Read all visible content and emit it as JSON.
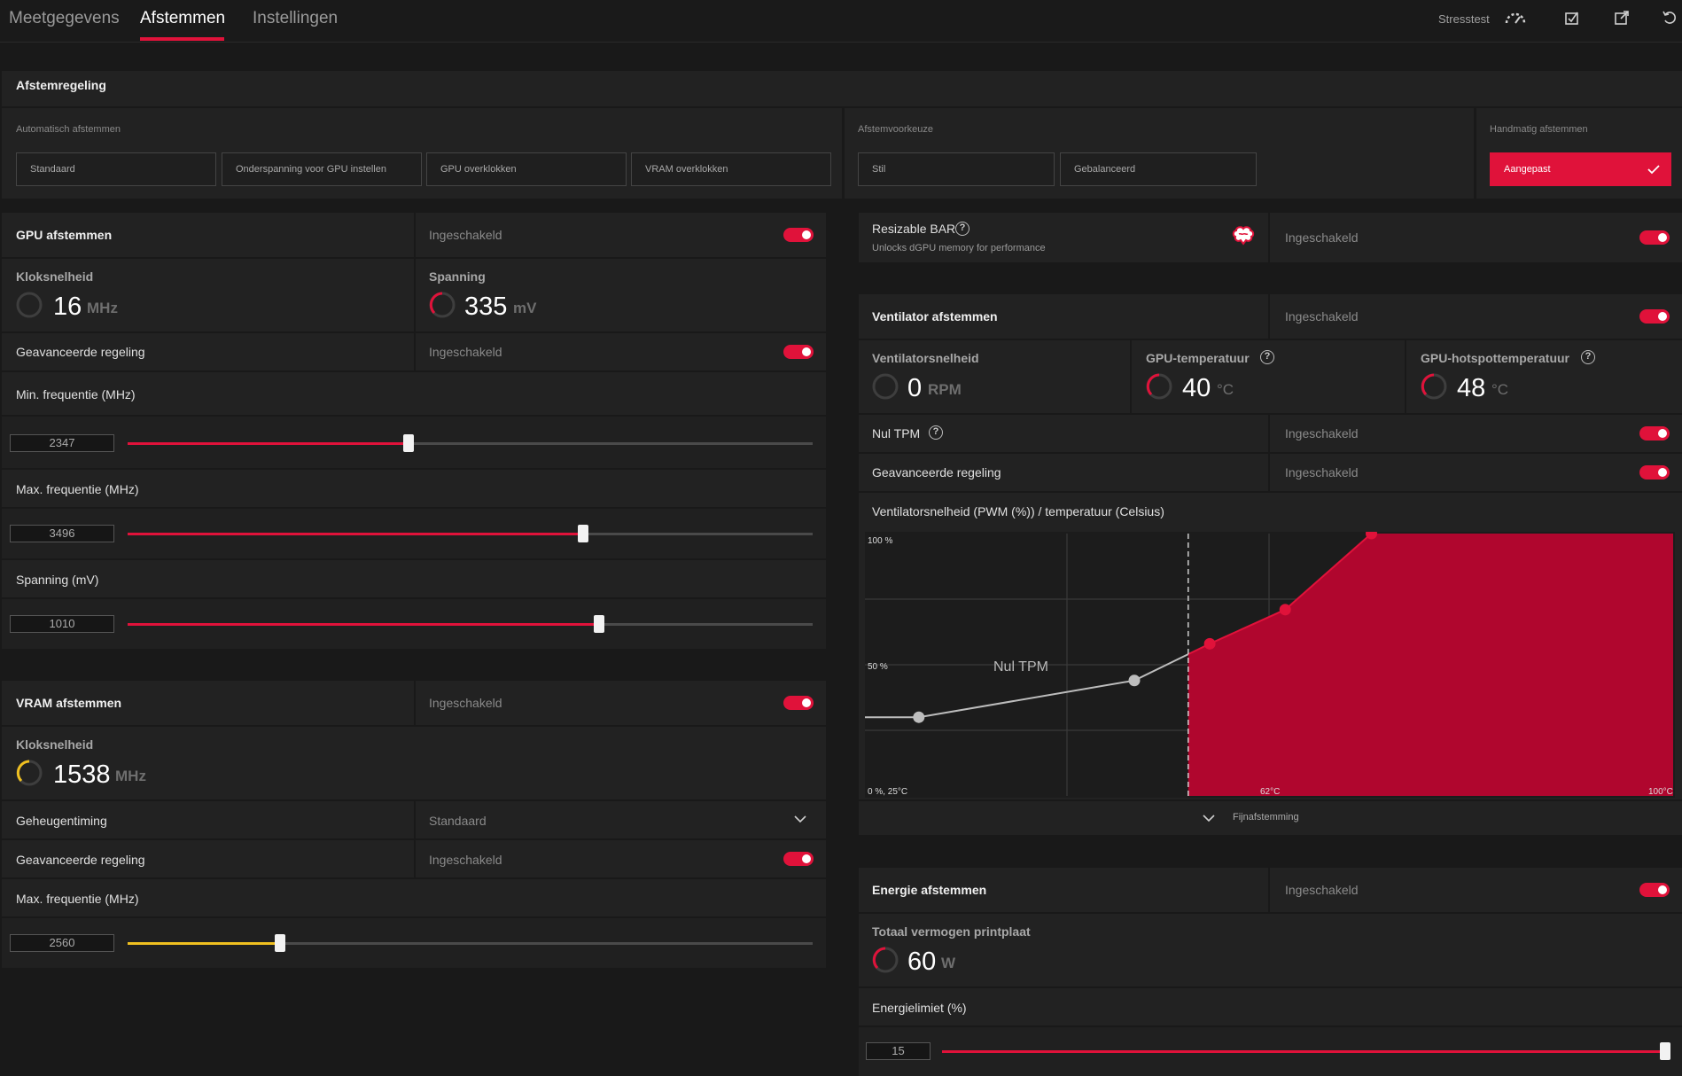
{
  "tabs": [
    {
      "label": "Meetgegevens"
    },
    {
      "label": "Afstemmen"
    },
    {
      "label": "Instellingen"
    }
  ],
  "topbar": {
    "stresstest_label": "Stresstest"
  },
  "colors": {
    "accent": "#e0123a",
    "vram_accent": "#f0c020",
    "background": "#191919",
    "panel": "#222222"
  },
  "tuning_control": {
    "title": "Afstemregeling",
    "auto": {
      "label": "Automatisch afstemmen",
      "options": [
        "Standaard",
        "Onderspanning voor GPU instellen",
        "GPU overklokken",
        "VRAM overklokken"
      ]
    },
    "preset": {
      "label": "Afstemvoorkeuze",
      "options": [
        "Stil",
        "Gebalanceerd"
      ]
    },
    "manual": {
      "label": "Handmatig afstemmen",
      "option": "Aangepast"
    }
  },
  "gpu": {
    "title": "GPU afstemmen",
    "status": "Ingeschakeld",
    "clock": {
      "label": "Kloksnelheid",
      "value": "16",
      "unit": "MHz"
    },
    "voltage": {
      "label": "Spanning",
      "value": "335",
      "unit": "mV"
    },
    "advanced": {
      "label": "Geavanceerde regeling",
      "status": "Ingeschakeld"
    },
    "min_freq": {
      "label": "Min. frequentie (MHz)",
      "value": "2347",
      "fraction": 0.41
    },
    "max_freq": {
      "label": "Max. frequentie (MHz)",
      "value": "3496",
      "fraction": 0.665
    },
    "volt_slider": {
      "label": "Spanning (mV)",
      "value": "1010",
      "fraction": 0.688
    }
  },
  "vram": {
    "title": "VRAM afstemmen",
    "status": "Ingeschakeld",
    "clock": {
      "label": "Kloksnelheid",
      "value": "1538",
      "unit": "MHz"
    },
    "timing": {
      "label": "Geheugentiming",
      "value": "Standaard"
    },
    "advanced": {
      "label": "Geavanceerde regeling",
      "status": "Ingeschakeld"
    },
    "max_freq": {
      "label": "Max. frequentie (MHz)",
      "value": "2560",
      "fraction": 0.222
    }
  },
  "rebar": {
    "title": "Resizable BAR",
    "subtitle": "Unlocks dGPU memory for performance",
    "status": "Ingeschakeld"
  },
  "fan": {
    "title": "Ventilator afstemmen",
    "status": "Ingeschakeld",
    "speed": {
      "label": "Ventilatorsnelheid",
      "value": "0",
      "unit": "RPM"
    },
    "gpu_temp": {
      "label": "GPU-temperatuur",
      "value": "40",
      "unit": "°C"
    },
    "hotspot": {
      "label": "GPU-hotspottemperatuur",
      "value": "48",
      "unit": "°C"
    },
    "zero_rpm": {
      "label": "Nul TPM",
      "status": "Ingeschakeld"
    },
    "advanced": {
      "label": "Geavanceerde regeling",
      "status": "Ingeschakeld"
    },
    "curve_title": "Ventilatorsnelheid (PWM (%)) / temperatuur (Celsius)",
    "fine_tune": "Fijnafstemming"
  },
  "chart_data": {
    "type": "area",
    "title": "Ventilatorsnelheid (PWM (%)) / temperatuur (Celsius)",
    "y_ticks": [
      "100 %",
      "50 %",
      "0 %, 25°C"
    ],
    "x_ticks": [
      "62°C",
      "100°C"
    ],
    "annotation": "Nul TPM",
    "xlim": [
      25,
      100
    ],
    "ylim": [
      0,
      100
    ],
    "zero_rpm_threshold": 55,
    "inactive_points": [
      {
        "x": 30,
        "y": 30
      },
      {
        "x": 50,
        "y": 44
      }
    ],
    "active_points": [
      {
        "x": 57,
        "y": 58
      },
      {
        "x": 64,
        "y": 71
      },
      {
        "x": 72,
        "y": 100
      }
    ]
  },
  "power": {
    "title": "Energie afstemmen",
    "status": "Ingeschakeld",
    "tbp": {
      "label": "Totaal vermogen printplaat",
      "value": "60",
      "unit": "W"
    },
    "limit": {
      "label": "Energielimiet (%)",
      "value": "15",
      "fraction": 0.995
    }
  }
}
